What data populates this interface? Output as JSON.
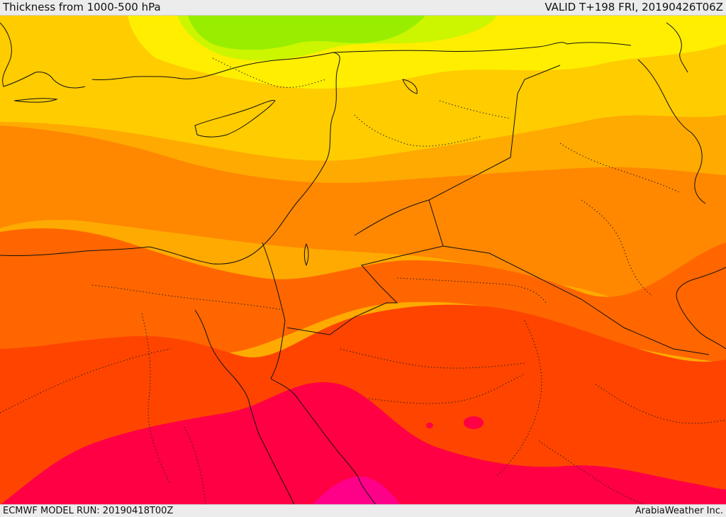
{
  "header": {
    "title": "Thickness from 1000-500 hPa",
    "valid": "VALID T+198 FRI, 20190426T06Z"
  },
  "footer": {
    "model_run": "ECMWF MODEL RUN: 20190418T00Z",
    "credit": "ArabiaWeather Inc."
  },
  "bands": [
    {
      "name": "green",
      "color": "#99ee00"
    },
    {
      "name": "yellow-green",
      "color": "#ccf500"
    },
    {
      "name": "yellow",
      "color": "#ffee00"
    },
    {
      "name": "light-orange",
      "color": "#ffcc00"
    },
    {
      "name": "amber",
      "color": "#ffaa00"
    },
    {
      "name": "orange",
      "color": "#ff8800"
    },
    {
      "name": "dark-orange",
      "color": "#ff6600"
    },
    {
      "name": "red-orange",
      "color": "#ff4400"
    },
    {
      "name": "crimson",
      "color": "#ff0044"
    },
    {
      "name": "magenta",
      "color": "#ff0088"
    }
  ]
}
